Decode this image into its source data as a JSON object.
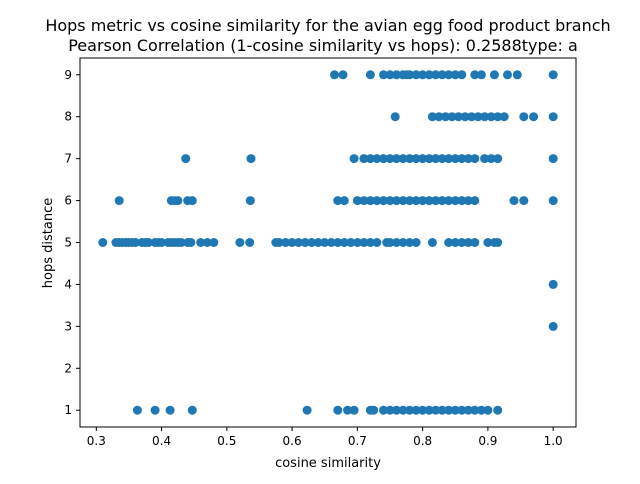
{
  "chart_data": {
    "type": "scatter",
    "title_line1": "Hops metric vs cosine similarity for the avian egg food product branch",
    "title_line2": "Pearson Correlation (1-cosine similarity vs hops): 0.2588type: a",
    "xlabel": "cosine similarity",
    "ylabel": "hops distance",
    "xlim": [
      0.275,
      1.035
    ],
    "ylim": [
      0.6,
      9.4
    ],
    "xticks": [
      0.3,
      0.4,
      0.5,
      0.6,
      0.7,
      0.8,
      0.9,
      1.0
    ],
    "xtick_labels": [
      "0.3",
      "0.4",
      "0.5",
      "0.6",
      "0.7",
      "0.8",
      "0.9",
      "1.0"
    ],
    "yticks": [
      1,
      2,
      3,
      4,
      5,
      6,
      7,
      8,
      9
    ],
    "ytick_labels": [
      "1",
      "2",
      "3",
      "4",
      "5",
      "6",
      "7",
      "8",
      "9"
    ],
    "grid": false,
    "marker_color": "#1f77b4",
    "points": [
      {
        "y": 9,
        "x": [
          0.665,
          0.678,
          0.72,
          0.74,
          0.75,
          0.76,
          0.77,
          0.775,
          0.78,
          0.79,
          0.8,
          0.81,
          0.82,
          0.83,
          0.84,
          0.85,
          0.86,
          0.88,
          0.89,
          0.91,
          0.93,
          0.945,
          1.0
        ]
      },
      {
        "y": 8,
        "x": [
          0.758,
          0.815,
          0.825,
          0.835,
          0.845,
          0.855,
          0.865,
          0.875,
          0.885,
          0.895,
          0.905,
          0.915,
          0.925,
          0.955,
          0.97,
          1.0
        ]
      },
      {
        "y": 7,
        "x": [
          0.437,
          0.537,
          0.695,
          0.71,
          0.72,
          0.73,
          0.74,
          0.75,
          0.76,
          0.77,
          0.78,
          0.79,
          0.8,
          0.81,
          0.82,
          0.83,
          0.84,
          0.85,
          0.86,
          0.87,
          0.88,
          0.895,
          0.905,
          0.915,
          1.0
        ]
      },
      {
        "y": 6,
        "x": [
          0.335,
          0.415,
          0.42,
          0.425,
          0.44,
          0.447,
          0.536,
          0.67,
          0.68,
          0.7,
          0.71,
          0.72,
          0.73,
          0.74,
          0.75,
          0.76,
          0.77,
          0.78,
          0.79,
          0.8,
          0.81,
          0.82,
          0.83,
          0.84,
          0.85,
          0.86,
          0.87,
          0.88,
          0.94,
          0.955,
          1.0
        ]
      },
      {
        "y": 5,
        "x": [
          0.31,
          0.33,
          0.335,
          0.34,
          0.345,
          0.35,
          0.355,
          0.36,
          0.37,
          0.375,
          0.38,
          0.39,
          0.395,
          0.4,
          0.41,
          0.415,
          0.42,
          0.425,
          0.43,
          0.44,
          0.445,
          0.46,
          0.47,
          0.48,
          0.52,
          0.535,
          0.575,
          0.58,
          0.59,
          0.6,
          0.61,
          0.62,
          0.63,
          0.64,
          0.65,
          0.66,
          0.67,
          0.68,
          0.69,
          0.7,
          0.71,
          0.72,
          0.73,
          0.745,
          0.75,
          0.76,
          0.77,
          0.78,
          0.79,
          0.815,
          0.84,
          0.85,
          0.86,
          0.87,
          0.88,
          0.9,
          0.91,
          0.915
        ]
      },
      {
        "y": 4,
        "x": [
          1.0
        ]
      },
      {
        "y": 3,
        "x": [
          1.0
        ]
      },
      {
        "y": 1,
        "x": [
          0.363,
          0.39,
          0.413,
          0.447,
          0.623,
          0.67,
          0.685,
          0.695,
          0.72,
          0.725,
          0.74,
          0.75,
          0.76,
          0.77,
          0.78,
          0.79,
          0.8,
          0.81,
          0.82,
          0.83,
          0.84,
          0.85,
          0.86,
          0.87,
          0.88,
          0.89,
          0.9,
          0.915
        ]
      }
    ]
  }
}
